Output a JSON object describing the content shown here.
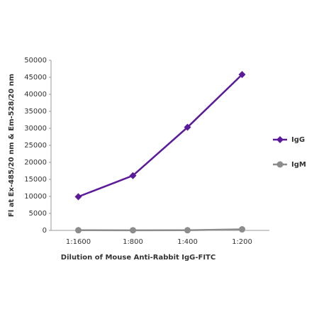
{
  "chart_data": {
    "type": "line",
    "y_label": "Fl at Ex-485/20 nm & Em-528/20 nm",
    "x_label": "Dilution of Mouse Anti-Rabbit IgG-FITC",
    "categories": [
      "1:1600",
      "1:800",
      "1:400",
      "1:200"
    ],
    "series": [
      {
        "name": "IgG",
        "color": "#5a1a9a",
        "marker": "diamond",
        "values": [
          9900,
          16100,
          30300,
          45800
        ]
      },
      {
        "name": "IgM",
        "color": "#8c8c8c",
        "marker": "circle",
        "values": [
          50,
          30,
          50,
          300
        ]
      }
    ],
    "ylim": [
      0,
      50000
    ],
    "yticks": [
      0,
      5000,
      10000,
      15000,
      20000,
      25000,
      30000,
      35000,
      40000,
      45000,
      50000
    ],
    "grid": false,
    "legend": "right"
  }
}
